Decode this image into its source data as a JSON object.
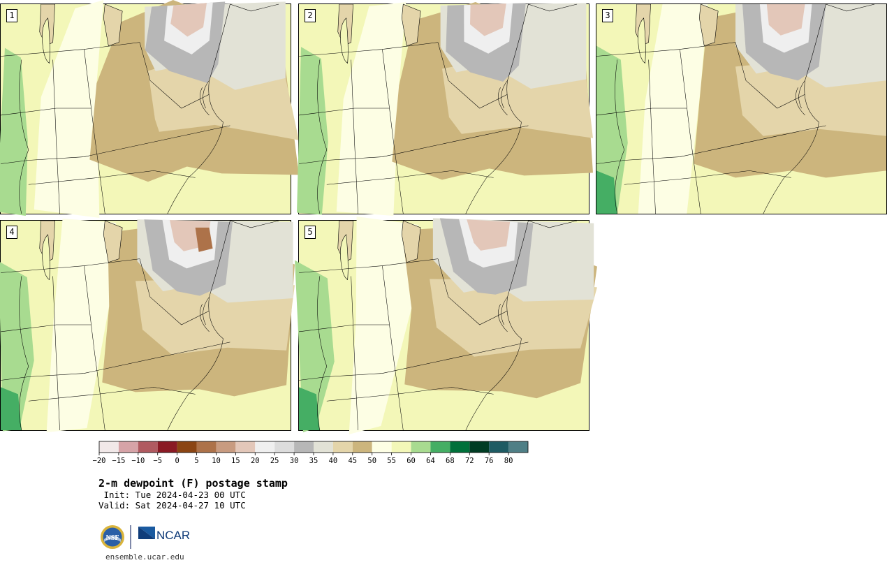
{
  "panels": [
    {
      "label": "1",
      "variant": 1
    },
    {
      "label": "2",
      "variant": 2
    },
    {
      "label": "3",
      "variant": 3
    },
    {
      "label": "4",
      "variant": 4
    },
    {
      "label": "5",
      "variant": 5
    }
  ],
  "colorbar": {
    "colors": [
      "#f1e8e8",
      "#d6a3a7",
      "#b05a60",
      "#8a1a24",
      "#8b4513",
      "#ad7249",
      "#c89b80",
      "#e3c7b9",
      "#efefef",
      "#dcdcdc",
      "#b7b7b7",
      "#e2e2d6",
      "#e4d5aa",
      "#ccb57d",
      "#fdfee4",
      "#f3f7b8",
      "#a8db90",
      "#45ae64",
      "#00703a",
      "#003c24",
      "#1e5b63",
      "#4f7f86"
    ],
    "ticks": [
      "−20",
      "−15",
      "−10",
      "−5",
      "0",
      "5",
      "10",
      "15",
      "20",
      "25",
      "30",
      "35",
      "40",
      "45",
      "50",
      "55",
      "60",
      "64",
      "68",
      "72",
      "76",
      "80"
    ]
  },
  "title": "2-m dewpoint (F) postage stamp",
  "init_line": " Init: Tue 2024-04-23 00 UTC",
  "valid_line": "Valid: Sat 2024-04-27 10 UTC",
  "logo": {
    "nsf_text": "NSF",
    "ncar_text": "NCAR"
  },
  "site": "ensemble.ucar.edu"
}
